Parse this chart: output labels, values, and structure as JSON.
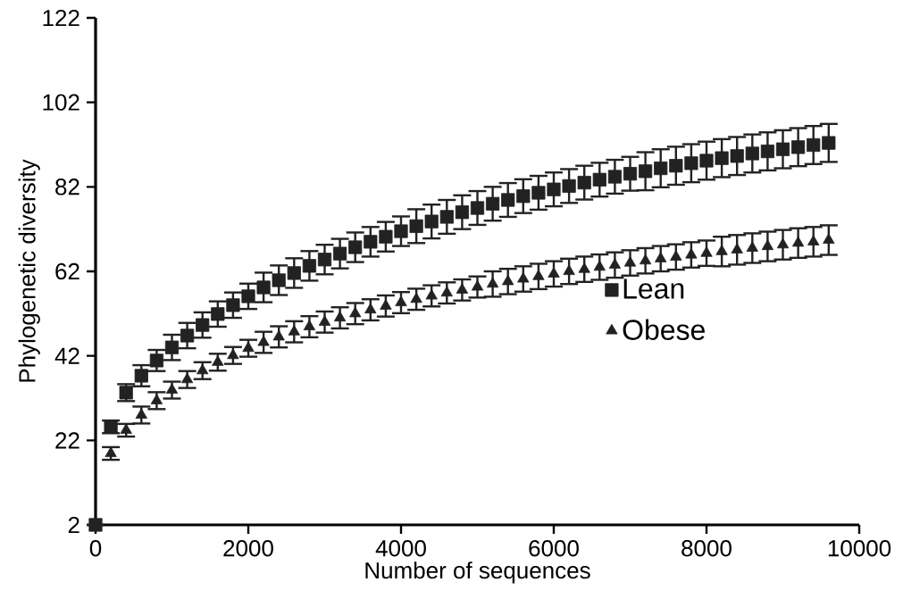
{
  "chart_data": {
    "type": "scatter",
    "xlabel": "Number of sequences",
    "ylabel": "Phylogenetic diversity",
    "x": [
      0,
      200,
      400,
      600,
      800,
      1000,
      1200,
      1400,
      1600,
      1800,
      2000,
      2200,
      2400,
      2600,
      2800,
      3000,
      3200,
      3400,
      3600,
      3800,
      4000,
      4200,
      4400,
      4600,
      4800,
      5000,
      5200,
      5400,
      5600,
      5800,
      6000,
      6200,
      6400,
      6600,
      6800,
      7000,
      7200,
      7400,
      7600,
      7800,
      8000,
      8200,
      8400,
      8600,
      8800,
      9000,
      9200,
      9400,
      9600
    ],
    "series": [
      {
        "name": "Lean",
        "color": "#222222",
        "marker": "square",
        "values": [
          2,
          25.2,
          33.3,
          37.3,
          40.9,
          44.0,
          46.8,
          49.3,
          51.9,
          54.0,
          56.1,
          58.2,
          59.9,
          61.6,
          63.3,
          64.8,
          66.2,
          67.7,
          69.0,
          70.2,
          71.5,
          72.7,
          73.8,
          74.9,
          76.0,
          77.0,
          78.0,
          78.9,
          79.8,
          80.6,
          81.4,
          82.2,
          83.0,
          83.7,
          84.4,
          85.1,
          85.7,
          86.4,
          87.0,
          87.6,
          88.2,
          88.8,
          89.3,
          89.9,
          90.4,
          90.9,
          91.4,
          91.9,
          92.4
        ],
        "errors": [
          null,
          1.5,
          2,
          2.5,
          2.5,
          3,
          3,
          3,
          3,
          3,
          3,
          3.5,
          3.5,
          3.5,
          3.5,
          3.5,
          3.5,
          3.5,
          3.5,
          3.5,
          3.5,
          4,
          4,
          4,
          4,
          4,
          4,
          4,
          4,
          4,
          4,
          4,
          4,
          4,
          4,
          4,
          4.5,
          4.5,
          4.5,
          4.5,
          4.5,
          4.5,
          4.5,
          4.5,
          4.5,
          4.5,
          4.5,
          4.5,
          4.5
        ]
      },
      {
        "name": "Obese",
        "color": "#222222",
        "marker": "triangle",
        "values": [
          null,
          18.9,
          24.4,
          28,
          31.4,
          33.9,
          36.4,
          38.5,
          40.5,
          42.1,
          43.8,
          45.2,
          46.5,
          47.7,
          48.9,
          50.0,
          51.0,
          52.0,
          52.9,
          53.8,
          54.6,
          55.4,
          56.2,
          56.9,
          57.6,
          58.3,
          59.0,
          59.6,
          60.2,
          60.8,
          61.4,
          62.0,
          62.5,
          63.0,
          63.5,
          64.0,
          64.5,
          65.0,
          65.4,
          65.9,
          66.3,
          66.7,
          67.1,
          67.5,
          67.9,
          68.3,
          68.7,
          69.0,
          69.4
        ],
        "errors": [
          null,
          1.5,
          1.5,
          2,
          2,
          2,
          2,
          2,
          2,
          2,
          2,
          2.5,
          2.5,
          2.5,
          2.5,
          2.5,
          2.5,
          2.5,
          2.5,
          2.5,
          2.5,
          2.5,
          2.5,
          2.5,
          2.5,
          2.5,
          3,
          3,
          3,
          3,
          3,
          3,
          3,
          3,
          3,
          3,
          3,
          3,
          3,
          3,
          3,
          3.5,
          3.5,
          3.5,
          3.5,
          3.5,
          3.5,
          3.5,
          3.5
        ]
      }
    ],
    "xlim": [
      0,
      10000
    ],
    "xticks": [
      0,
      2000,
      4000,
      6000,
      8000,
      10000
    ],
    "ylim": [
      2,
      122
    ],
    "yticks": [
      2,
      22,
      42,
      62,
      82,
      102,
      122
    ],
    "legend": "right",
    "grid": false
  }
}
